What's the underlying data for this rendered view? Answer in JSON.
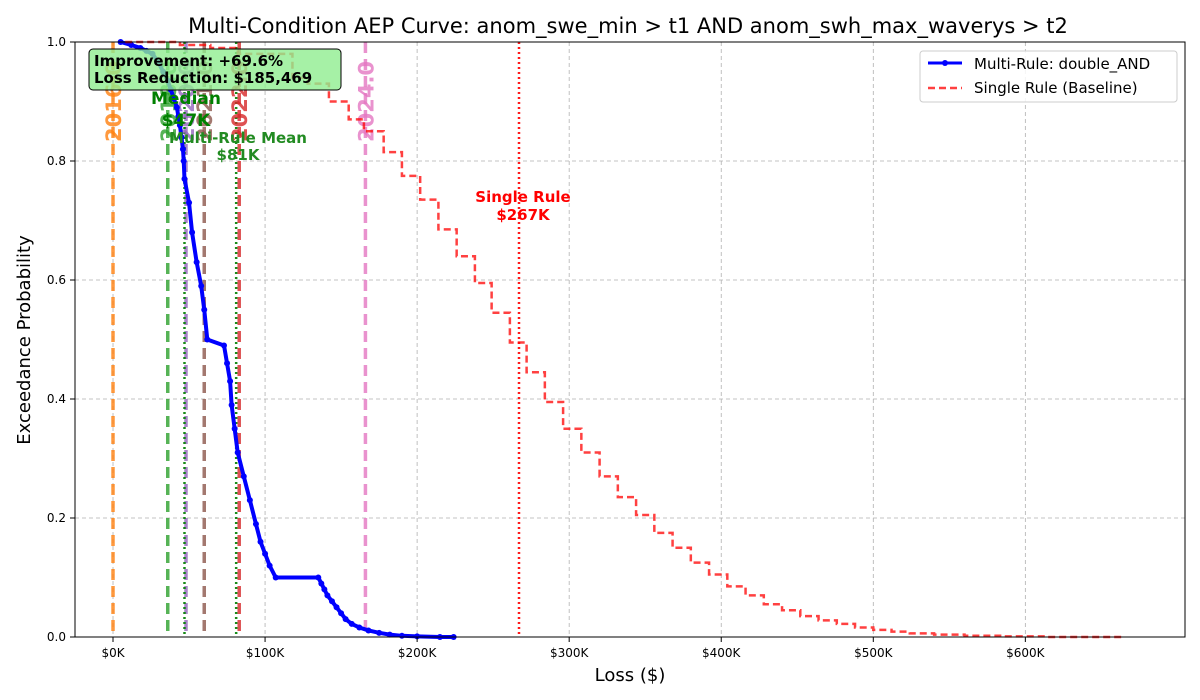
{
  "chart_data": {
    "type": "line",
    "title": "Multi-Condition AEP Curve: anom_swe_min > t1 AND anom_swh_max_waverys > t2",
    "xlabel": "Loss ($)",
    "ylabel": "Exceedance Probability",
    "xlim": [
      -25000,
      705000
    ],
    "ylim": [
      0,
      1
    ],
    "x_ticks": [
      {
        "value": 0,
        "label": "$0K"
      },
      {
        "value": 100000,
        "label": "$100K"
      },
      {
        "value": 200000,
        "label": "$200K"
      },
      {
        "value": 300000,
        "label": "$300K"
      },
      {
        "value": 400000,
        "label": "$400K"
      },
      {
        "value": 500000,
        "label": "$500K"
      },
      {
        "value": 600000,
        "label": "$600K"
      }
    ],
    "y_ticks": [
      {
        "value": 0.0,
        "label": "0.0"
      },
      {
        "value": 0.2,
        "label": "0.2"
      },
      {
        "value": 0.4,
        "label": "0.4"
      },
      {
        "value": 0.6,
        "label": "0.6"
      },
      {
        "value": 0.8,
        "label": "0.8"
      },
      {
        "value": 1.0,
        "label": "1.0"
      }
    ],
    "grid": true,
    "legend_position": "top-right",
    "series": [
      {
        "name": "Multi-Rule: double_AND",
        "color": "#0000ff",
        "style": "solid-with-markers",
        "points": [
          [
            5000,
            1.0
          ],
          [
            12000,
            0.995
          ],
          [
            18000,
            0.99
          ],
          [
            22000,
            0.985
          ],
          [
            26000,
            0.98
          ],
          [
            30000,
            0.965
          ],
          [
            33000,
            0.95
          ],
          [
            36000,
            0.935
          ],
          [
            38000,
            0.92
          ],
          [
            40000,
            0.905
          ],
          [
            42000,
            0.89
          ],
          [
            43000,
            0.875
          ],
          [
            44000,
            0.86
          ],
          [
            45000,
            0.84
          ],
          [
            46000,
            0.82
          ],
          [
            46500,
            0.8
          ],
          [
            47000,
            0.77
          ],
          [
            50000,
            0.73
          ],
          [
            52000,
            0.68
          ],
          [
            55000,
            0.63
          ],
          [
            58000,
            0.59
          ],
          [
            60000,
            0.55
          ],
          [
            62000,
            0.5
          ],
          [
            73000,
            0.49
          ],
          [
            75000,
            0.46
          ],
          [
            77000,
            0.43
          ],
          [
            78000,
            0.39
          ],
          [
            80000,
            0.35
          ],
          [
            82000,
            0.31
          ],
          [
            86000,
            0.27
          ],
          [
            90000,
            0.23
          ],
          [
            94000,
            0.19
          ],
          [
            97000,
            0.16
          ],
          [
            100000,
            0.14
          ],
          [
            103000,
            0.12
          ],
          [
            107000,
            0.1
          ],
          [
            135000,
            0.1
          ],
          [
            137000,
            0.09
          ],
          [
            139000,
            0.08
          ],
          [
            141000,
            0.07
          ],
          [
            144000,
            0.06
          ],
          [
            147000,
            0.05
          ],
          [
            150000,
            0.04
          ],
          [
            153000,
            0.03
          ],
          [
            157000,
            0.022
          ],
          [
            162000,
            0.016
          ],
          [
            168000,
            0.011
          ],
          [
            175000,
            0.007
          ],
          [
            182000,
            0.004
          ],
          [
            190000,
            0.002
          ],
          [
            200000,
            0.001
          ],
          [
            215000,
            0.0
          ],
          [
            224000,
            0.0
          ]
        ]
      },
      {
        "name": "Single Rule (Baseline)",
        "color": "#ff0000",
        "style": "dashed-step",
        "points": [
          [
            8000,
            1.0
          ],
          [
            44000,
            0.995
          ],
          [
            64000,
            0.99
          ],
          [
            82000,
            0.98
          ],
          [
            99000,
            0.98
          ],
          [
            118000,
            0.94
          ],
          [
            128000,
            0.93
          ],
          [
            135000,
            0.93
          ],
          [
            142000,
            0.9
          ],
          [
            155000,
            0.87
          ],
          [
            165000,
            0.85
          ],
          [
            178000,
            0.815
          ],
          [
            190000,
            0.775
          ],
          [
            202000,
            0.735
          ],
          [
            214000,
            0.685
          ],
          [
            226000,
            0.64
          ],
          [
            238000,
            0.595
          ],
          [
            249000,
            0.545
          ],
          [
            261000,
            0.495
          ],
          [
            272000,
            0.445
          ],
          [
            284000,
            0.395
          ],
          [
            296000,
            0.35
          ],
          [
            308000,
            0.31
          ],
          [
            320000,
            0.27
          ],
          [
            332000,
            0.235
          ],
          [
            344000,
            0.205
          ],
          [
            356000,
            0.175
          ],
          [
            368000,
            0.15
          ],
          [
            380000,
            0.125
          ],
          [
            392000,
            0.105
          ],
          [
            404000,
            0.085
          ],
          [
            416000,
            0.07
          ],
          [
            428000,
            0.055
          ],
          [
            440000,
            0.045
          ],
          [
            452000,
            0.035
          ],
          [
            464000,
            0.028
          ],
          [
            476000,
            0.022
          ],
          [
            488000,
            0.016
          ],
          [
            500000,
            0.012
          ],
          [
            512000,
            0.009
          ],
          [
            524000,
            0.006
          ],
          [
            540000,
            0.004
          ],
          [
            560000,
            0.002
          ],
          [
            585000,
            0.001
          ],
          [
            615000,
            0.0
          ],
          [
            663000,
            0.0
          ]
        ]
      }
    ],
    "vertical_lines": [
      {
        "x": 0,
        "color": "#ff7f0e",
        "style": "dashed",
        "label": "2016.0"
      },
      {
        "x": 36000,
        "color": "#2ca02c",
        "style": "dashed",
        "label": "2018.0"
      },
      {
        "x": 48000,
        "color": "#9467bd",
        "style": "dashed",
        "label": "2020.0"
      },
      {
        "x": 60000,
        "color": "#8c564b",
        "style": "dashed",
        "label": "2021.0"
      },
      {
        "x": 83000,
        "color": "#d62728",
        "style": "dashed",
        "label": "2022.0"
      },
      {
        "x": 166000,
        "color": "#e377c2",
        "style": "dashed",
        "label": "2024.0"
      },
      {
        "x": 47000,
        "color": "#008000",
        "style": "dotted",
        "label": ""
      },
      {
        "x": 81000,
        "color": "#008000",
        "style": "dotted",
        "label": ""
      },
      {
        "x": 267000,
        "color": "#ff0000",
        "style": "dotted",
        "label": ""
      }
    ],
    "annotations": {
      "median_title": "Median",
      "median_value": "$47K",
      "multi_mean_title": "Multi-Rule Mean",
      "multi_mean_value": "$81K",
      "single_title": "Single Rule",
      "single_value": "$267K"
    },
    "info_box": {
      "line1": "Improvement: +69.6%",
      "line2": "Loss Reduction: $185,469"
    }
  }
}
